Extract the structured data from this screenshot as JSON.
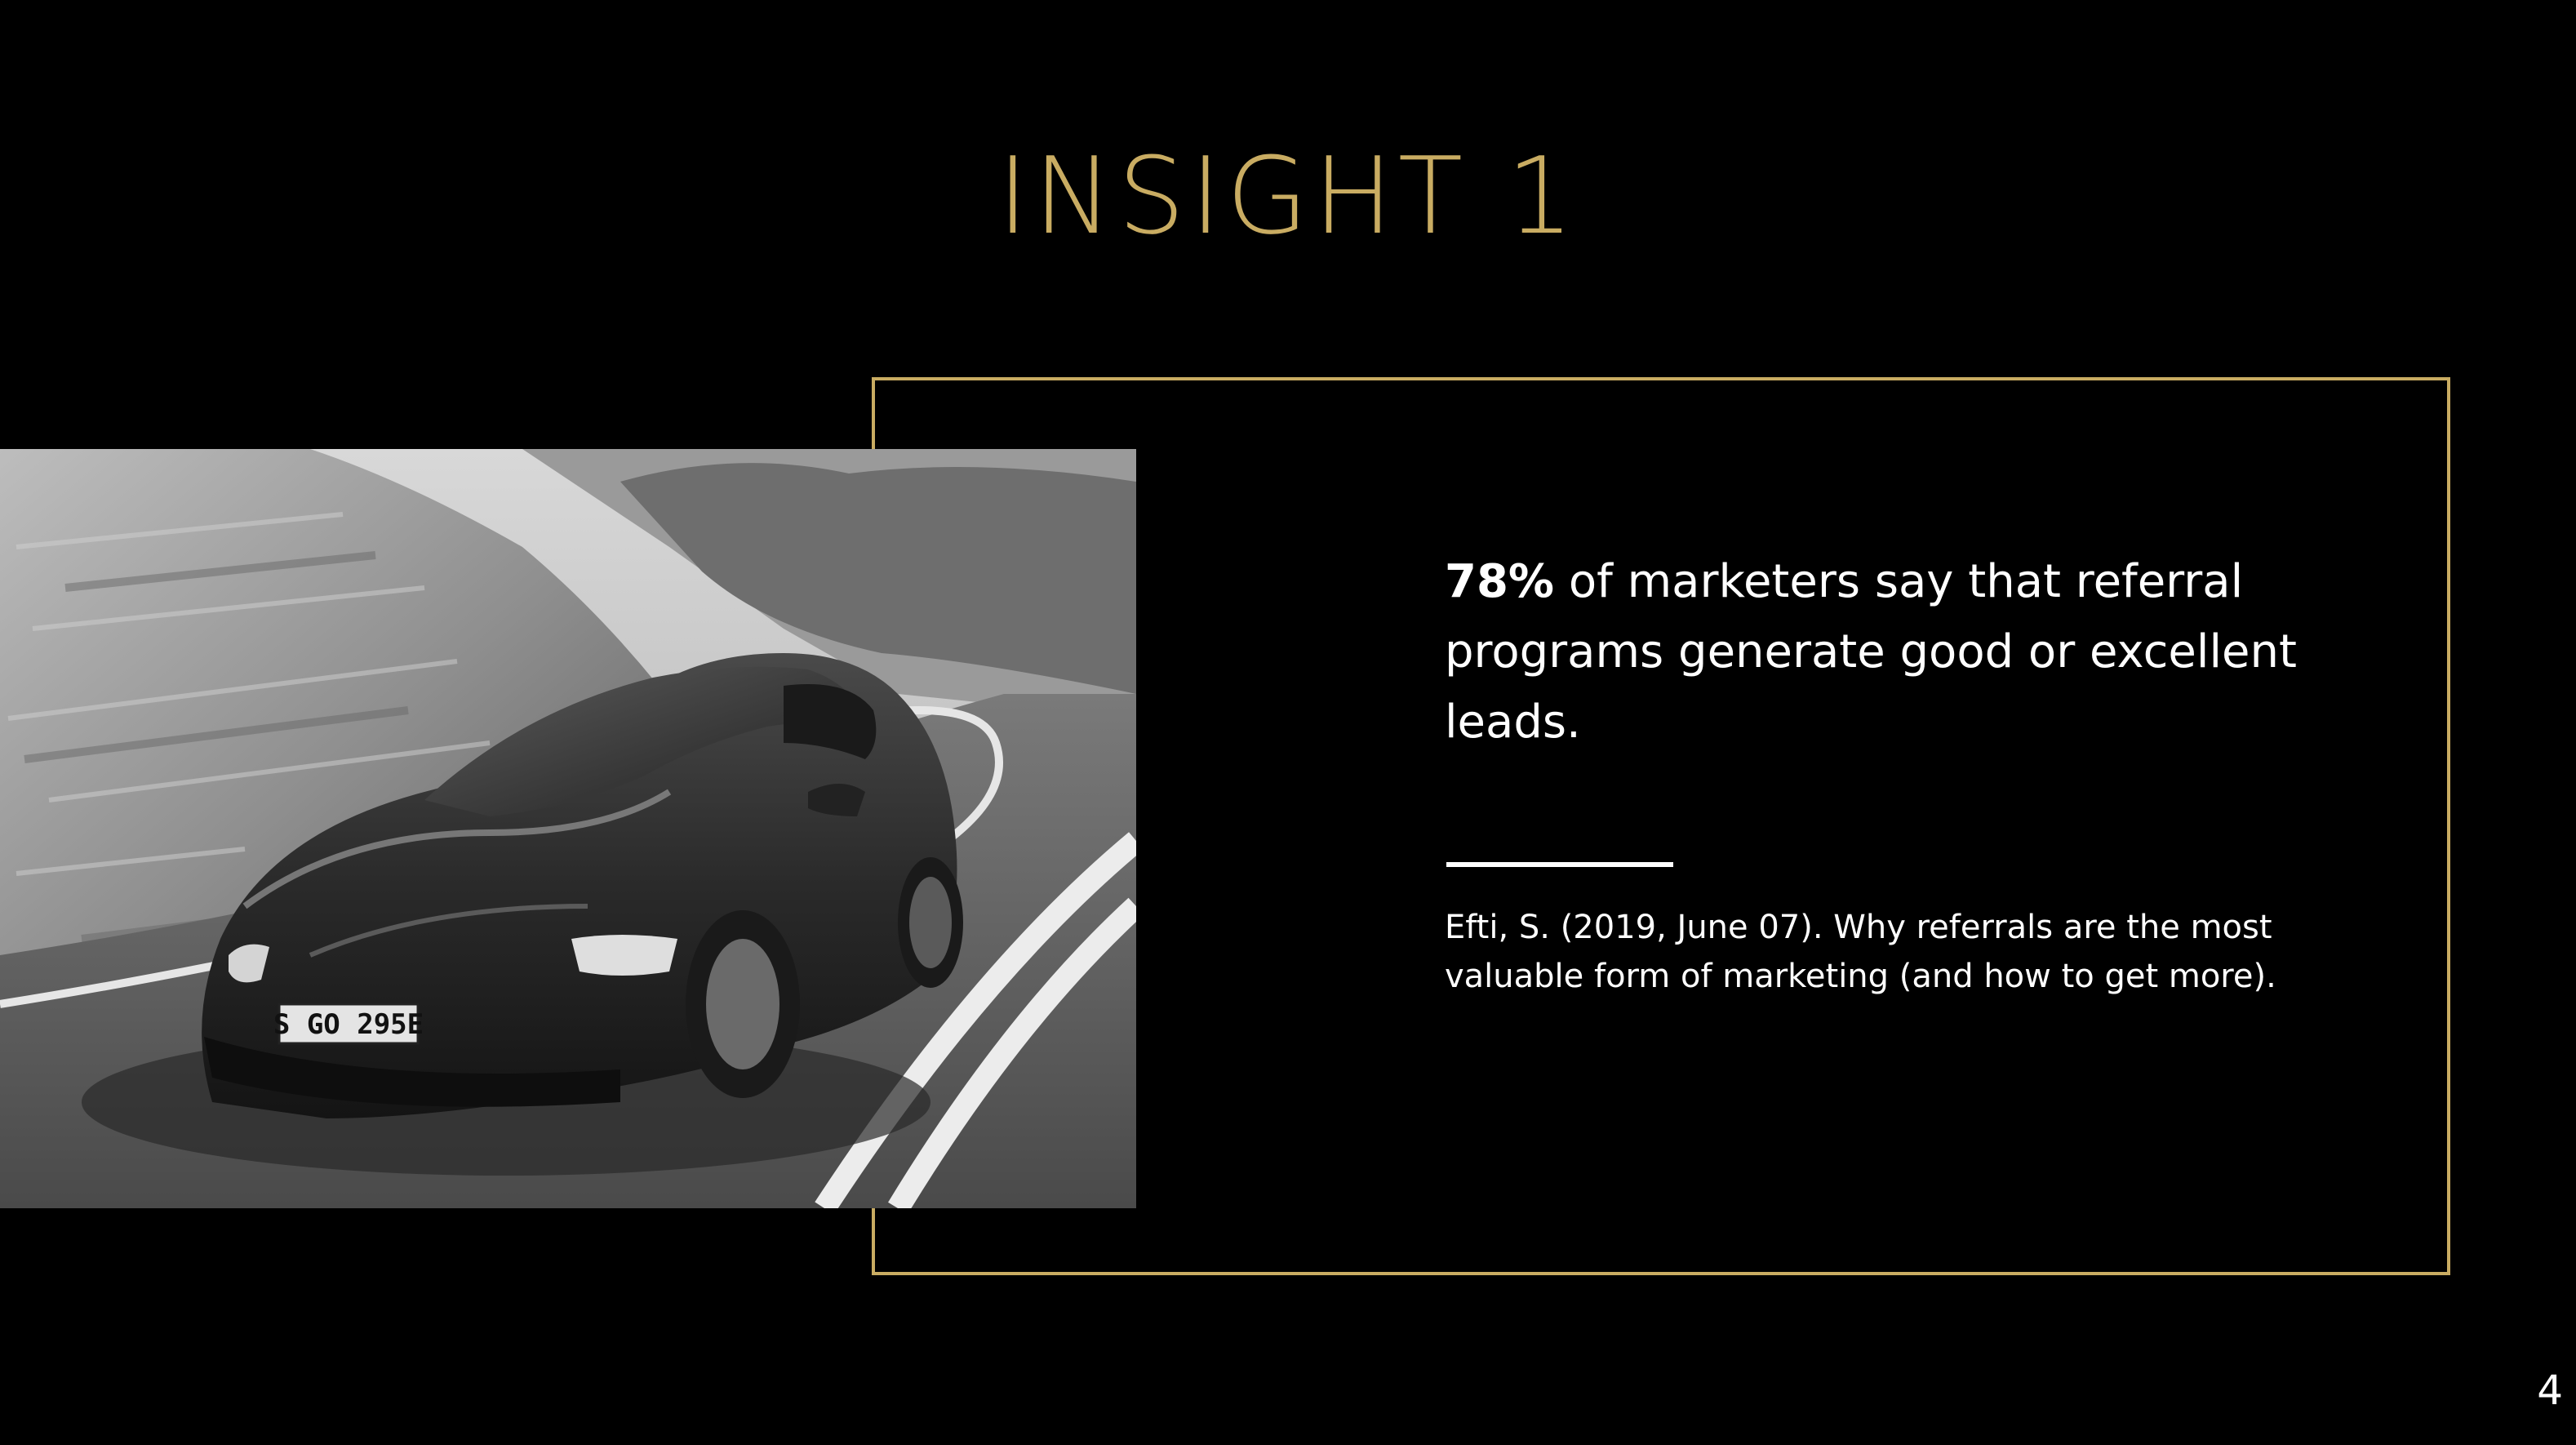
{
  "slide": {
    "title": "INSIGHT 1",
    "statistic": {
      "highlight": "78%",
      "text": " of marketers say that referral programs generate good or excellent leads."
    },
    "citation": "Efti, S. (2019, June 07). Why referrals are the most valuable form of marketing (and how to get more).",
    "page_number": "4",
    "image": {
      "description_icon": "car-photo",
      "license_plate": "S GO 295E"
    }
  },
  "colors": {
    "background": "#000000",
    "accent_gold": "#c9ac62",
    "text": "#ffffff"
  }
}
